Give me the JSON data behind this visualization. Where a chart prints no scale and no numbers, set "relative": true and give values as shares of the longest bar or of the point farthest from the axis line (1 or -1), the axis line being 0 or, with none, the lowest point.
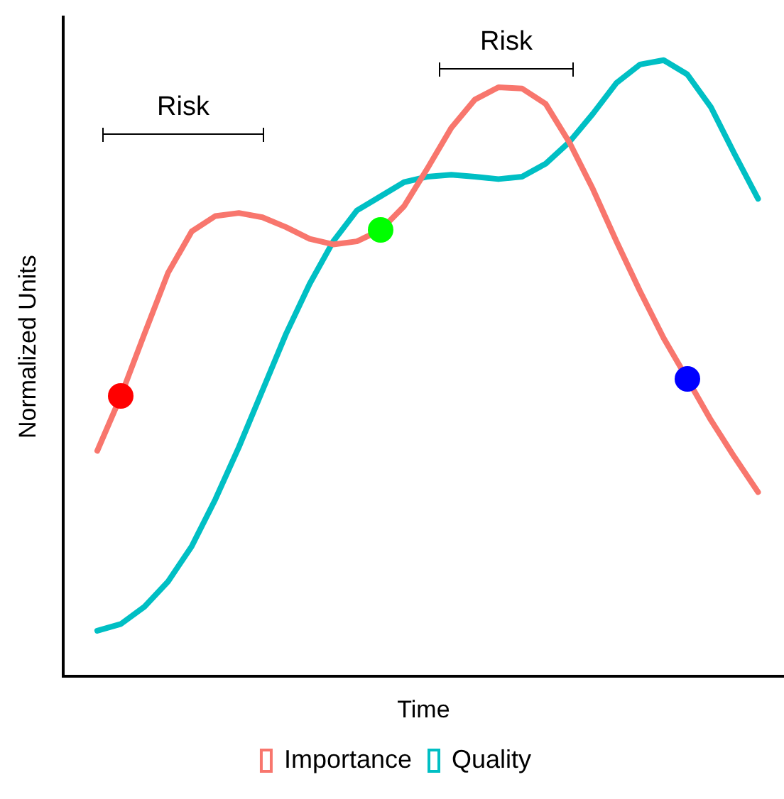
{
  "chart_data": {
    "type": "line",
    "relative": true,
    "xlabel": "Time",
    "ylabel": "Normalized Units",
    "legend": "bottom",
    "grid": false,
    "tick_labels": false,
    "marker": "none",
    "categories": [
      null,
      null,
      null,
      null,
      null,
      null,
      null,
      null,
      null,
      null,
      null,
      null,
      null,
      null,
      null,
      null,
      null,
      null,
      null,
      null,
      null,
      null,
      null,
      null,
      null,
      null,
      null,
      null,
      null
    ],
    "series": [
      {
        "name": "Importance",
        "color": "#f8766d",
        "values": [
          0.366,
          0.455,
          0.556,
          0.655,
          0.722,
          0.747,
          0.752,
          0.745,
          0.729,
          0.71,
          0.701,
          0.706,
          0.724,
          0.763,
          0.825,
          0.89,
          0.936,
          0.956,
          0.954,
          0.929,
          0.867,
          0.791,
          0.706,
          0.625,
          0.549,
          0.483,
          0.416,
          0.356,
          0.299
        ]
      },
      {
        "name": "Quality",
        "color": "#00bfc4",
        "values": [
          0.074,
          0.085,
          0.113,
          0.154,
          0.211,
          0.287,
          0.372,
          0.464,
          0.556,
          0.637,
          0.706,
          0.756,
          0.779,
          0.802,
          0.811,
          0.814,
          0.811,
          0.807,
          0.811,
          0.832,
          0.867,
          0.913,
          0.963,
          0.993,
          1.0,
          0.977,
          0.924,
          0.848,
          0.775
        ]
      }
    ],
    "annotations": [
      "Risk",
      "Risk"
    ]
  }
}
